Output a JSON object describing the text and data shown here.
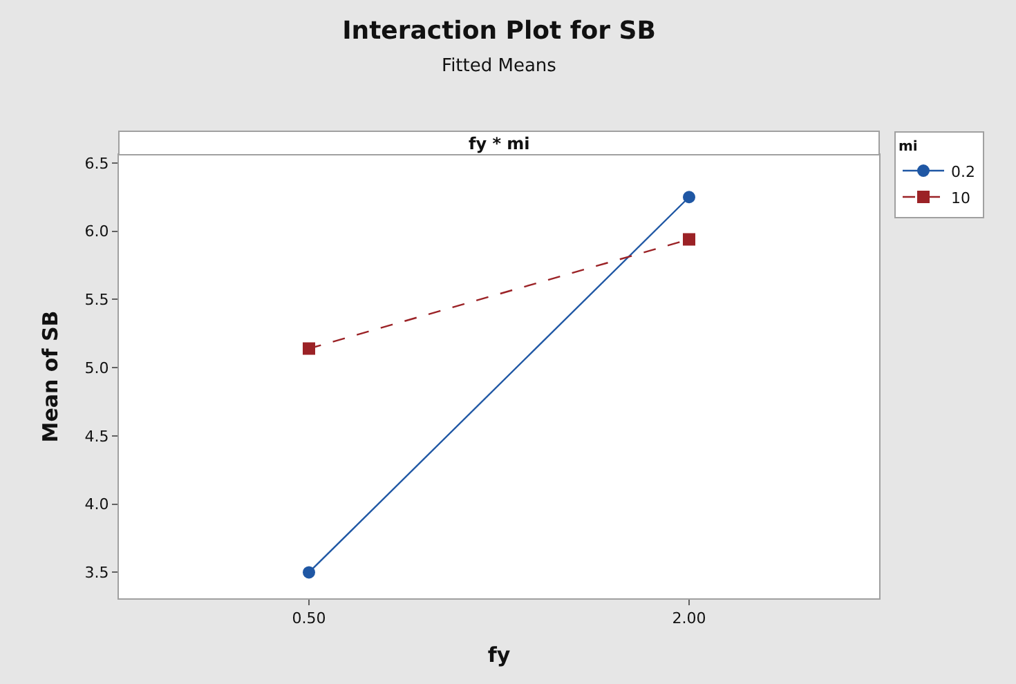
{
  "chart_data": {
    "type": "line",
    "title": "Interaction Plot for SB",
    "subtitle": "Fitted Means",
    "xlabel": "fy",
    "ylabel": "Mean of SB",
    "legend_title": "mi",
    "annotations": [
      "fy * mi"
    ],
    "categories": [
      "0.50",
      "2.00"
    ],
    "series": [
      {
        "name": "0.2",
        "color": "#1f57a4",
        "values": [
          3.5,
          6.25
        ],
        "marker": "circle",
        "line_style": "solid"
      },
      {
        "name": "10",
        "color": "#9b2226",
        "values": [
          5.14,
          5.94
        ],
        "marker": "square",
        "line_style": "dashed"
      }
    ],
    "ylim": [
      3.31,
      6.56
    ],
    "yticks": [
      {
        "value": 3.5,
        "label": "3.5"
      },
      {
        "value": 4.0,
        "label": "4.0"
      },
      {
        "value": 4.5,
        "label": "4.5"
      },
      {
        "value": 5.0,
        "label": "5.0"
      },
      {
        "value": 5.5,
        "label": "5.5"
      },
      {
        "value": 6.0,
        "label": "6.0"
      },
      {
        "value": 6.5,
        "label": "6.5"
      }
    ],
    "legend": "top right"
  }
}
